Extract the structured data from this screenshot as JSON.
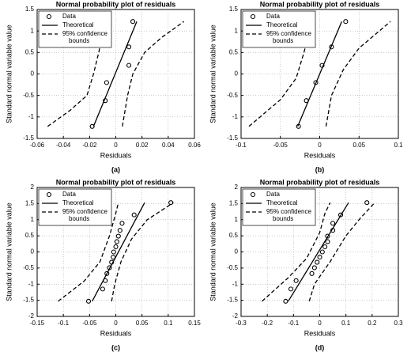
{
  "chart_data": [
    {
      "type": "normal-probability",
      "title": "Normal probability plot of residuals",
      "xlabel": "Residuals",
      "ylabel": "Standard normal variable value",
      "caption": "(a)",
      "xlim": [
        -0.06,
        0.06
      ],
      "xticks": [
        -0.06,
        -0.04,
        -0.02,
        0,
        0.02,
        0.04,
        0.06
      ],
      "ylim": [
        -1.5,
        1.5
      ],
      "yticks": [
        -1.5,
        -1,
        -0.5,
        0,
        0.5,
        1,
        1.5
      ],
      "grid": true,
      "legend": "upper-left",
      "series": [
        {
          "name": "Data",
          "type": "scatter",
          "color": "#000000",
          "x": [
            -0.018,
            -0.008,
            -0.007,
            0.01,
            0.01,
            0.013
          ],
          "values": [
            -1.22,
            -0.62,
            -0.2,
            0.2,
            0.63,
            1.22
          ]
        },
        {
          "name": "Theoretical",
          "type": "line",
          "color": "#000000",
          "x": [
            -0.017,
            0.016
          ],
          "values": [
            -1.22,
            1.22
          ]
        },
        {
          "name": "95% confidence bounds",
          "type": "dashed",
          "color": "#000000",
          "x": [
            -0.052,
            -0.035,
            -0.022,
            -0.017,
            -0.013,
            -0.008
          ],
          "values": [
            -1.22,
            -0.85,
            -0.5,
            0,
            0.5,
            1.22
          ]
        },
        {
          "type": "dashed",
          "color": "#000000",
          "x": [
            0.005,
            0.009,
            0.013,
            0.022,
            0.035,
            0.052
          ],
          "values": [
            -1.22,
            -0.5,
            0,
            0.5,
            0.85,
            1.22
          ]
        }
      ]
    },
    {
      "type": "normal-probability",
      "title": "Normal probability plot of residuals",
      "xlabel": "Residuals",
      "ylabel": "Standard normal variable value",
      "caption": "(b)",
      "xlim": [
        -0.1,
        0.1
      ],
      "xticks": [
        -0.1,
        -0.05,
        0,
        0.05,
        0.1
      ],
      "ylim": [
        -1.5,
        1.5
      ],
      "yticks": [
        -1.5,
        -1,
        -0.5,
        0,
        0.5,
        1,
        1.5
      ],
      "grid": true,
      "legend": "upper-left",
      "series": [
        {
          "name": "Data",
          "type": "scatter",
          "color": "#000000",
          "x": [
            -0.027,
            -0.017,
            -0.005,
            0.003,
            0.015,
            0.033
          ],
          "values": [
            -1.22,
            -0.62,
            -0.2,
            0.2,
            0.63,
            1.22
          ]
        },
        {
          "name": "Theoretical",
          "type": "line",
          "color": "#000000",
          "x": [
            -0.028,
            0.028
          ],
          "values": [
            -1.22,
            1.22
          ]
        },
        {
          "name": "95% confidence bounds",
          "type": "dashed",
          "color": "#000000",
          "x": [
            -0.09,
            -0.05,
            -0.03,
            -0.02,
            -0.01
          ],
          "values": [
            -1.22,
            -0.6,
            -0.1,
            0.5,
            1.22
          ]
        },
        {
          "type": "dashed",
          "color": "#000000",
          "x": [
            0.008,
            0.015,
            0.03,
            0.05,
            0.09
          ],
          "values": [
            -1.22,
            -0.5,
            0.1,
            0.6,
            1.22
          ]
        }
      ]
    },
    {
      "type": "normal-probability",
      "title": "Normal probability plot of residuals",
      "xlabel": "Residuals",
      "ylabel": "Standard normal variable value",
      "caption": "(c)",
      "xlim": [
        -0.15,
        0.15
      ],
      "xticks": [
        -0.15,
        -0.1,
        -0.05,
        0,
        0.05,
        0.1,
        0.15
      ],
      "ylim": [
        -2,
        2
      ],
      "yticks": [
        -2,
        -1.5,
        -1,
        -0.5,
        0,
        0.5,
        1,
        1.5,
        2
      ],
      "grid": true,
      "legend": "upper-left",
      "series": [
        {
          "name": "Data",
          "type": "scatter",
          "color": "#000000",
          "x": [
            -0.052,
            -0.025,
            -0.02,
            -0.017,
            -0.012,
            -0.008,
            -0.005,
            -0.004,
            0.0,
            0.002,
            0.005,
            0.008,
            0.012,
            0.035,
            0.105
          ],
          "values": [
            -1.53,
            -1.15,
            -0.89,
            -0.67,
            -0.49,
            -0.32,
            -0.16,
            0,
            0.16,
            0.32,
            0.49,
            0.67,
            0.89,
            1.15,
            1.53
          ]
        },
        {
          "name": "Theoretical",
          "type": "line",
          "color": "#000000",
          "x": [
            -0.045,
            0.055
          ],
          "values": [
            -1.53,
            1.53
          ]
        },
        {
          "name": "95% confidence bounds",
          "type": "dashed",
          "color": "#000000",
          "x": [
            -0.11,
            -0.06,
            -0.03,
            -0.012,
            0.0,
            0.005
          ],
          "values": [
            -1.53,
            -0.9,
            -0.3,
            0.5,
            1.2,
            1.53
          ]
        },
        {
          "type": "dashed",
          "color": "#000000",
          "x": [
            -0.008,
            -0.002,
            0.01,
            0.03,
            0.06,
            0.11
          ],
          "values": [
            -1.53,
            -1.0,
            -0.3,
            0.4,
            1.0,
            1.53
          ]
        }
      ]
    },
    {
      "type": "normal-probability",
      "title": "Normal probability plot of residuals",
      "xlabel": "Residuals",
      "ylabel": "Standard normal variable value",
      "caption": "(d)",
      "xlim": [
        -0.3,
        0.3
      ],
      "xticks": [
        -0.3,
        -0.2,
        -0.1,
        0,
        0.1,
        0.2,
        0.3
      ],
      "ylim": [
        -2,
        2
      ],
      "yticks": [
        -2,
        -1.5,
        -1,
        -0.5,
        0,
        0.5,
        1,
        1.5,
        2
      ],
      "grid": true,
      "legend": "upper-left",
      "series": [
        {
          "name": "Data",
          "type": "scatter",
          "color": "#000000",
          "x": [
            -0.13,
            -0.11,
            -0.09,
            -0.03,
            -0.02,
            -0.01,
            0.0,
            0.01,
            0.02,
            0.03,
            0.03,
            0.05,
            0.05,
            0.08,
            0.18
          ],
          "values": [
            -1.53,
            -1.15,
            -0.89,
            -0.67,
            -0.49,
            -0.32,
            -0.16,
            0,
            0.16,
            0.32,
            0.49,
            0.67,
            0.89,
            1.15,
            1.53
          ]
        },
        {
          "name": "Theoretical",
          "type": "line",
          "color": "#000000",
          "x": [
            -0.12,
            0.11
          ],
          "values": [
            -1.53,
            1.53
          ]
        },
        {
          "name": "95% confidence bounds",
          "type": "dashed",
          "color": "#000000",
          "x": [
            -0.22,
            -0.12,
            -0.05,
            0.0,
            0.02,
            0.04
          ],
          "values": [
            -1.53,
            -0.8,
            -0.2,
            0.6,
            1.2,
            1.53
          ]
        },
        {
          "type": "dashed",
          "color": "#000000",
          "x": [
            -0.04,
            -0.02,
            0.04,
            0.1,
            0.15,
            0.21
          ],
          "values": [
            -1.53,
            -1.0,
            -0.3,
            0.5,
            1.0,
            1.53
          ]
        }
      ]
    }
  ]
}
